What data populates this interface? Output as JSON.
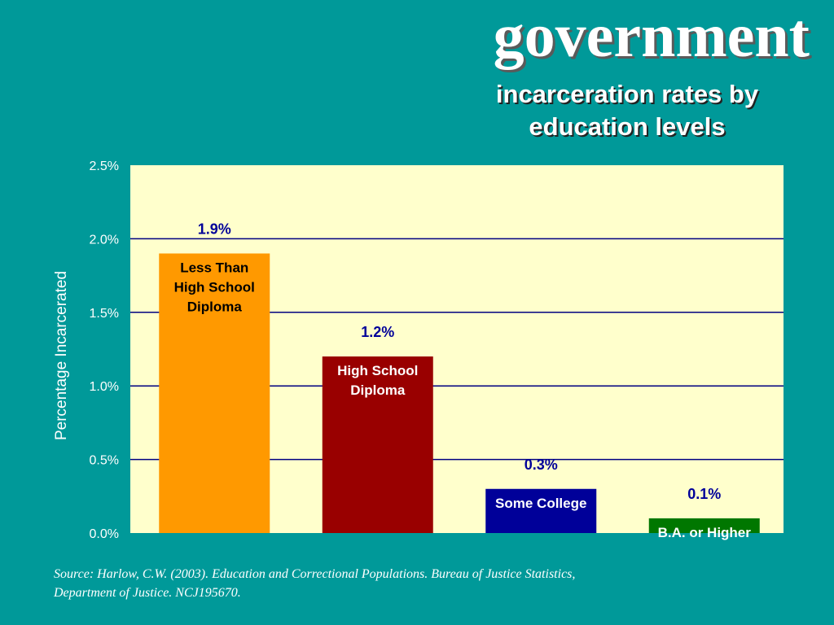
{
  "slide": {
    "title": "government",
    "subtitle_lines": [
      "incarceration rates by",
      "education levels"
    ]
  },
  "chart_data": {
    "type": "bar",
    "categories": [
      "Less Than High School Diploma",
      "High School Diploma",
      "Some College",
      "B.A. or Higher"
    ],
    "category_label_lines": [
      [
        "Less Than",
        "High School",
        "Diploma"
      ],
      [
        "High School",
        "Diploma"
      ],
      [
        "Some College"
      ],
      [
        "B.A. or Higher"
      ]
    ],
    "values": [
      1.9,
      1.2,
      0.3,
      0.1
    ],
    "value_labels": [
      "1.9%",
      "1.2%",
      "0.3%",
      "0.1%"
    ],
    "bar_colors": [
      "#ff9900",
      "#990000",
      "#000099",
      "#007700"
    ],
    "category_label_colors": [
      "#000000",
      "#ffffff",
      "#ffffff",
      "#ffffff"
    ],
    "ylabel": "Percentage Incarcerated",
    "ylim": [
      0,
      2.5
    ],
    "yticks": [
      0,
      0.5,
      1.0,
      1.5,
      2.0,
      2.5
    ],
    "ytick_labels": [
      "0.0%",
      "0.5%",
      "1.0%",
      "1.5%",
      "2.0%",
      "2.5%"
    ],
    "grid": true,
    "plot_background": "#ffffcc",
    "grid_color": "#000080",
    "value_label_color": "#000099"
  },
  "source_lines": [
    "Source:  Harlow, C.W.  (2003).  Education and Correctional Populations.  Bureau of Justice Statistics,",
    "Department of Justice.  NCJ195670."
  ]
}
